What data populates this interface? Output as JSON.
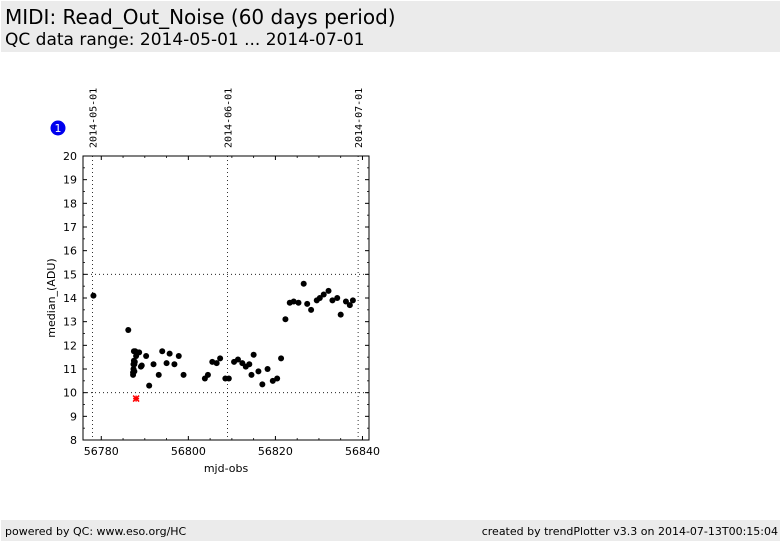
{
  "header": {
    "title": "MIDI: Read_Out_Noise (60 days period)",
    "subtitle": "QC data range: 2014-05-01 ... 2014-07-01"
  },
  "footer": {
    "left": "powered by QC: www.eso.org/HC",
    "right": "created by trendPlotter v3.3 on 2014-07-13T00:15:04"
  },
  "marker_badge": "1",
  "colors": {
    "points": "#000000",
    "outlier": "#ff0000",
    "badge": "#0000ee",
    "header_bg": "#ebebeb"
  },
  "chart_data": {
    "type": "scatter",
    "xlabel": "mjd-obs",
    "ylabel": "median_(ADU)",
    "xlim": [
      56775.8,
      56841.5
    ],
    "ylim": [
      8,
      20
    ],
    "xticks": [
      56780,
      56800,
      56820,
      56840
    ],
    "yticks": [
      8,
      9,
      10,
      11,
      12,
      13,
      14,
      15,
      16,
      17,
      18,
      19,
      20
    ],
    "hlines": [
      10,
      15
    ],
    "date_lines": [
      {
        "x": 56778,
        "label": "2014-05-01"
      },
      {
        "x": 56809,
        "label": "2014-06-01"
      },
      {
        "x": 56839,
        "label": "2014-07-01"
      }
    ],
    "series": [
      {
        "x": [
          56778.2,
          56786.2,
          56787.3,
          56787.3,
          56787.4,
          56787.4,
          56787.5,
          56787.5,
          56787.6,
          56787.6,
          56787.7,
          56787.8,
          56788.0,
          56788.7,
          56789.1,
          56789.3,
          56790.3,
          56791.0,
          56792.0,
          56793.2,
          56794.0,
          56795.0,
          56795.7,
          56796.8,
          56797.8,
          56798.9,
          56803.8,
          56804.5,
          56805.5,
          56806.5,
          56807.3,
          56808.5,
          56809.3,
          56810.5,
          56811.4,
          56812.4,
          56813.2,
          56814.0,
          56814.5,
          56815.0,
          56816.1,
          56817.0,
          56818.2,
          56819.4,
          56820.4,
          56821.3,
          56822.3,
          56823.3,
          56824.2,
          56825.3,
          56826.5,
          56827.3,
          56828.2,
          56829.5,
          56830.2,
          56831.1,
          56832.2,
          56833.1,
          56834.2,
          56835.0,
          56836.2,
          56837.1,
          56837.8
        ],
        "y": [
          14.1,
          12.65,
          10.75,
          10.85,
          11.0,
          11.2,
          11.35,
          11.75,
          10.9,
          11.2,
          11.3,
          11.75,
          11.55,
          11.7,
          11.1,
          11.15,
          11.55,
          10.3,
          11.2,
          10.75,
          11.75,
          11.25,
          11.65,
          11.2,
          11.55,
          10.75,
          10.6,
          10.75,
          11.3,
          11.25,
          11.45,
          10.6,
          10.6,
          11.3,
          11.4,
          11.25,
          11.1,
          11.2,
          10.75,
          11.6,
          10.9,
          10.35,
          11.0,
          10.5,
          10.6,
          11.45,
          13.1,
          13.8,
          13.85,
          13.8,
          14.6,
          13.75,
          13.5,
          13.9,
          14.0,
          14.15,
          14.3,
          13.9,
          14.0,
          13.3,
          13.85,
          13.7,
          13.9
        ]
      }
    ],
    "outliers": [
      {
        "x": 56788.0,
        "y": 9.75
      }
    ]
  }
}
